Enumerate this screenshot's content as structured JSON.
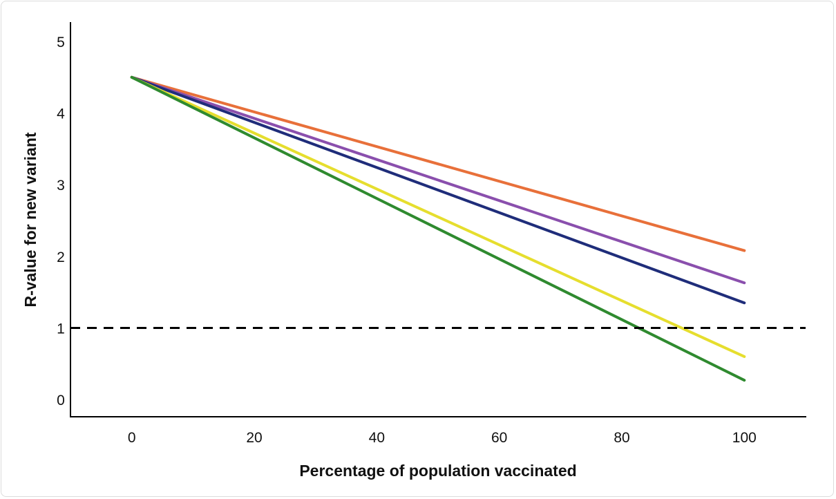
{
  "chart_data": {
    "type": "line",
    "title": "",
    "xlabel": "Percentage of population vaccinated",
    "ylabel": "R-value for new variant",
    "xlim": [
      -10,
      110
    ],
    "ylim": [
      -0.24,
      5.27
    ],
    "xticks": [
      "0",
      "20",
      "40",
      "60",
      "80",
      "100"
    ],
    "yticks": [
      "0",
      "1",
      "2",
      "3",
      "4",
      "5"
    ],
    "grid": false,
    "legend": "none",
    "x": [
      0,
      100
    ],
    "series": [
      {
        "name": "orange",
        "color": "#e8703a",
        "values": [
          4.5,
          2.08
        ]
      },
      {
        "name": "purple",
        "color": "#8a4fad",
        "values": [
          4.5,
          1.63
        ]
      },
      {
        "name": "blue",
        "color": "#1f2d7a",
        "values": [
          4.5,
          1.35
        ]
      },
      {
        "name": "yellow",
        "color": "#e6de2e",
        "values": [
          4.5,
          0.6
        ]
      },
      {
        "name": "green",
        "color": "#2f8a2f",
        "values": [
          4.5,
          0.27
        ]
      }
    ],
    "reference_line": {
      "y": 1,
      "style": "dashed",
      "color": "#000000"
    }
  }
}
